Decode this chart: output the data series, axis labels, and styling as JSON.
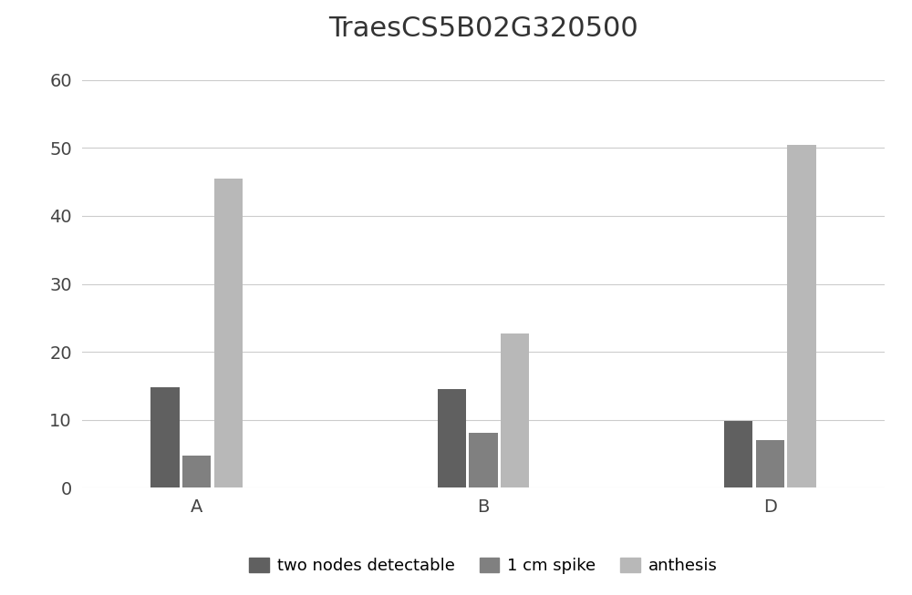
{
  "title": "TraesCS5B02G320500",
  "groups": [
    "A",
    "B",
    "D"
  ],
  "series": {
    "two nodes detectable": [
      14.8,
      14.5,
      9.8
    ],
    "1 cm spike": [
      4.7,
      8.1,
      7.0
    ],
    "anthesis": [
      45.5,
      22.7,
      50.5
    ]
  },
  "colors": {
    "two nodes detectable": "#606060",
    "1 cm spike": "#808080",
    "anthesis": "#b8b8b8"
  },
  "ylim": [
    0,
    63
  ],
  "yticks": [
    0,
    10,
    20,
    30,
    40,
    50,
    60
  ],
  "bar_width": 0.2,
  "title_fontsize": 22,
  "tick_fontsize": 14,
  "legend_fontsize": 13,
  "background_color": "#ffffff"
}
